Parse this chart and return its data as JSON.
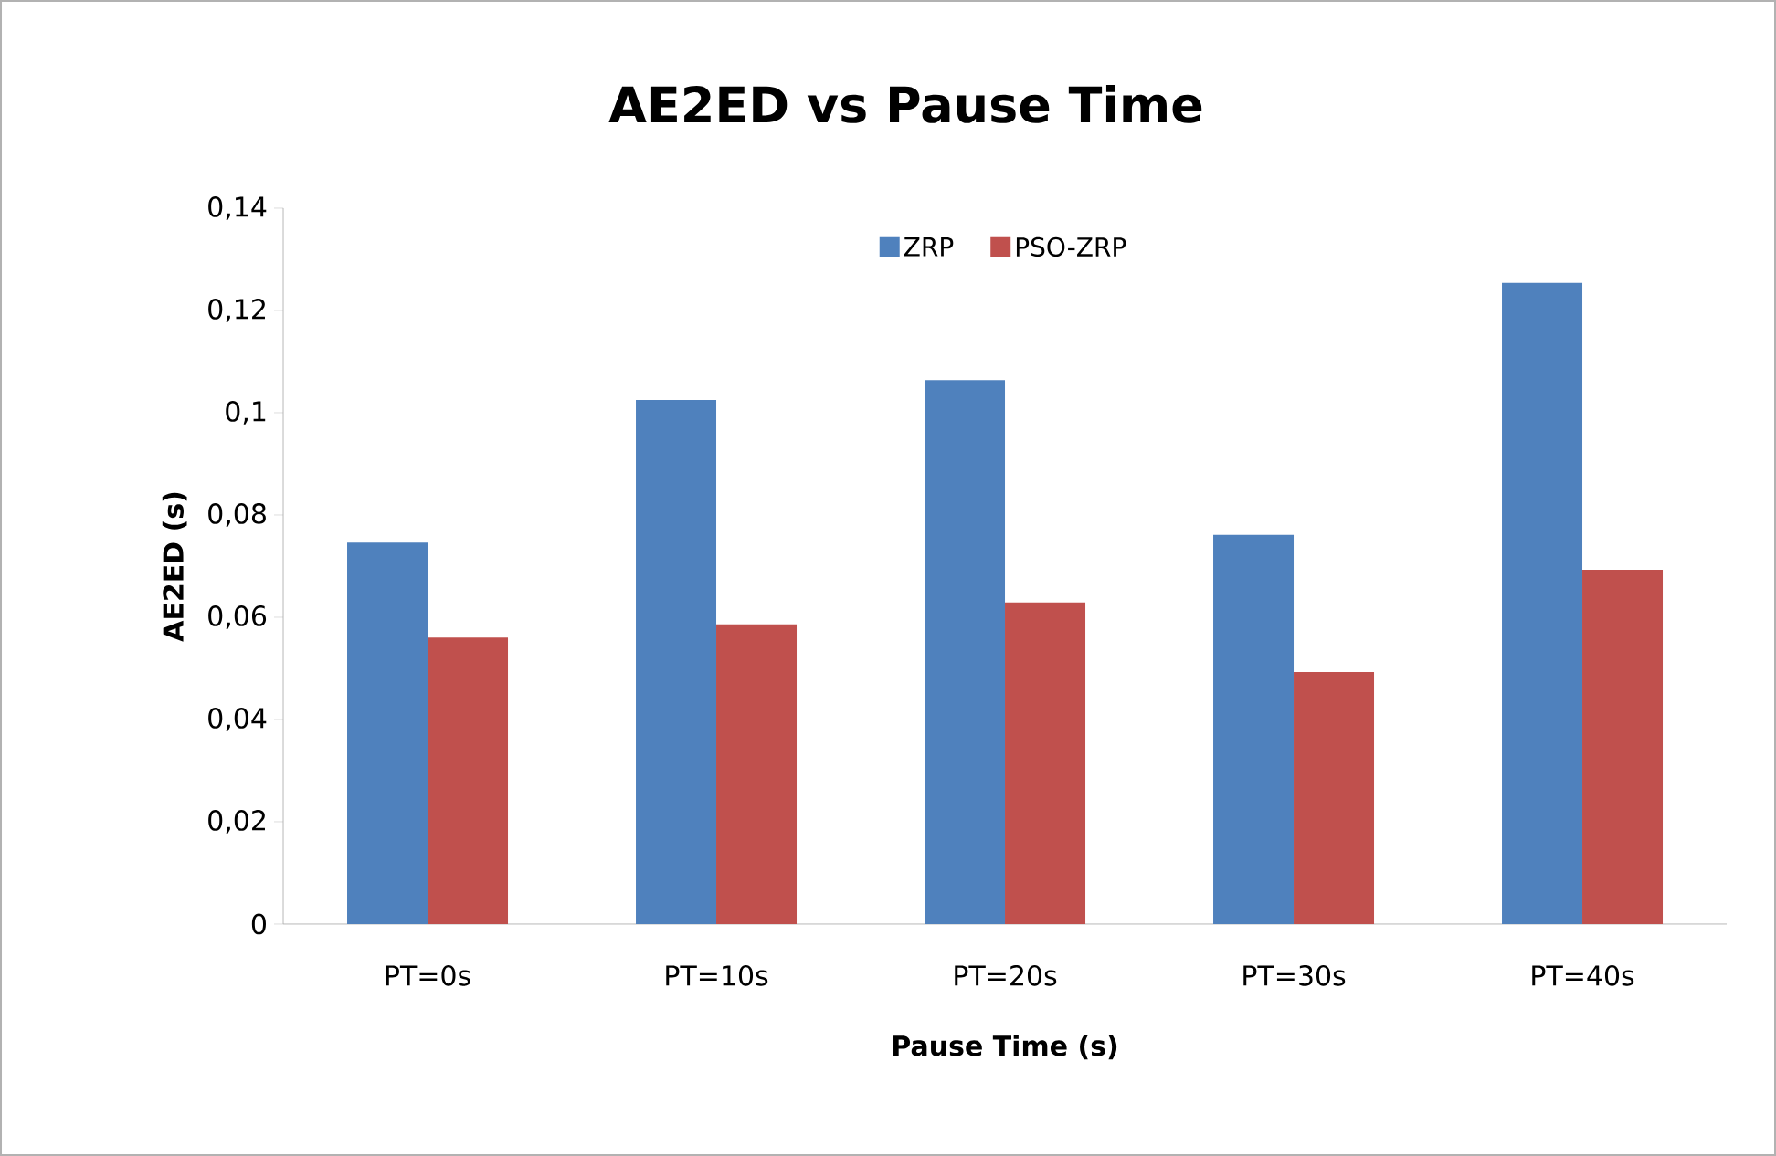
{
  "chart_data": {
    "type": "bar",
    "title": "AE2ED vs Pause Time",
    "xlabel": "Pause Time (s)",
    "ylabel": "AE2ED (s)",
    "categories": [
      "PT=0s",
      "PT=10s",
      "PT=20s",
      "PT=30s",
      "PT=40s"
    ],
    "series": [
      {
        "name": "ZRP",
        "color": "#4f81bd",
        "values": [
          0.0746,
          0.1025,
          0.1064,
          0.0761,
          0.1254
        ]
      },
      {
        "name": "PSO-ZRP",
        "color": "#c0504d",
        "values": [
          0.056,
          0.0586,
          0.0629,
          0.0493,
          0.0693
        ]
      }
    ],
    "ylim": [
      0,
      0.14
    ],
    "yticks": [
      0,
      {
        "value": 0.02,
        "label": "0,02"
      },
      {
        "value": 0.04,
        "label": "0,04"
      },
      {
        "value": 0.06,
        "label": "0,06"
      },
      {
        "value": 0.08,
        "label": "0,08"
      },
      {
        "value": 0.1,
        "label": "0,1"
      },
      {
        "value": 0.12,
        "label": "0,12"
      },
      {
        "value": 0.14,
        "label": "0,14"
      }
    ],
    "grid": false,
    "legend": "top"
  }
}
